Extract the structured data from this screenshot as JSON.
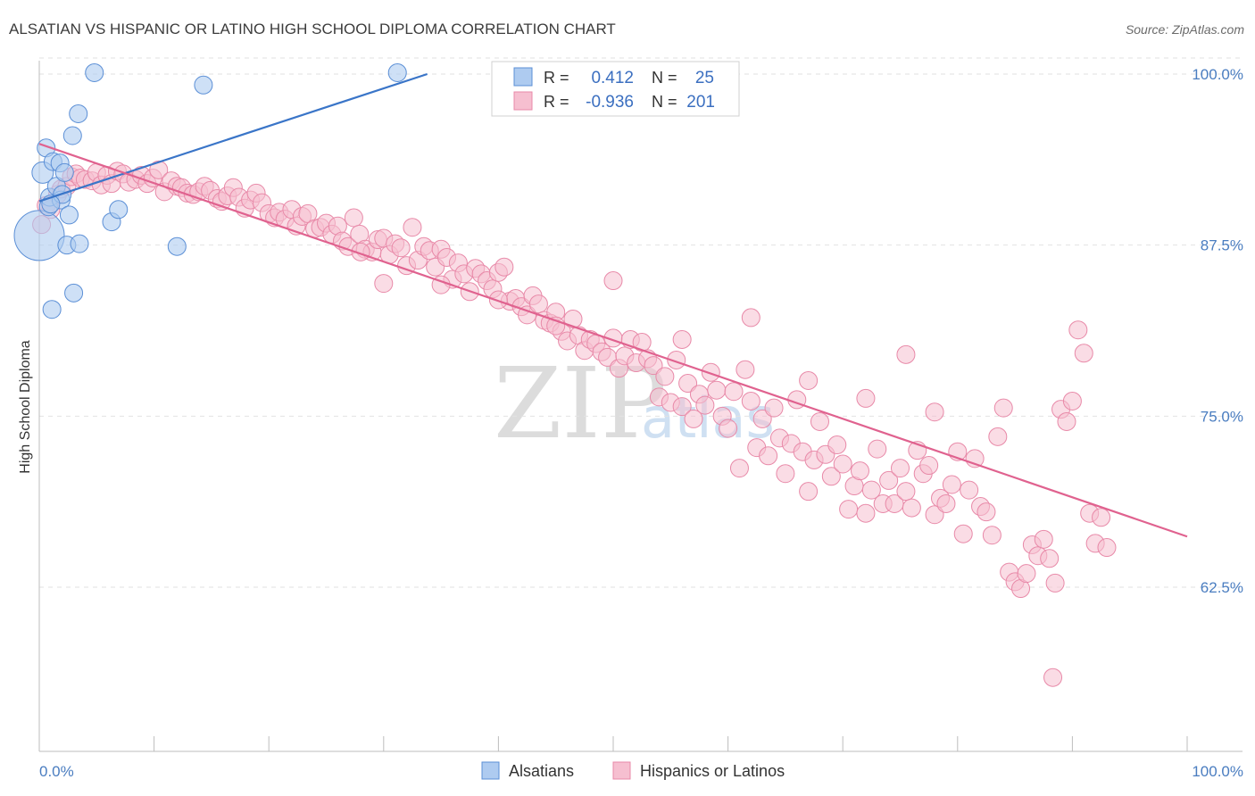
{
  "title": "ALSATIAN VS HISPANIC OR LATINO HIGH SCHOOL DIPLOMA CORRELATION CHART",
  "source": "Source: ZipAtlas.com",
  "watermark": {
    "zip": "ZIP",
    "atlas": "atlas"
  },
  "colors": {
    "blue_fill": "#aecbf0",
    "blue_stroke": "#5b8fd6",
    "blue_line": "#3a75c8",
    "pink_fill": "#f6bfd0",
    "pink_stroke": "#e889a8",
    "pink_line": "#e0628f",
    "grid": "#e2e2e2",
    "axis": "#bdbdbd",
    "tick_text": "#4a7dc0"
  },
  "legend": {
    "r_label": "R =",
    "n_label": "N =",
    "rows": [
      {
        "series": "Alsatians",
        "r": "0.412",
        "n": "25"
      },
      {
        "series": "Hispanics or Latinos",
        "r": "-0.936",
        "n": "201"
      }
    ]
  },
  "chart_data": {
    "type": "scatter",
    "title": "ALSATIAN VS HISPANIC OR LATINO HIGH SCHOOL DIPLOMA CORRELATION CHART",
    "xlabel": "",
    "ylabel": "High School Diploma",
    "xlim": [
      0,
      100
    ],
    "ylim": [
      50.5,
      101.5
    ],
    "x_tick_labels": [
      "0.0%",
      "100.0%"
    ],
    "y_ticks": [
      62.5,
      75.0,
      87.5,
      100.0
    ],
    "y_tick_labels": [
      "62.5%",
      "75.0%",
      "87.5%",
      "100.0%"
    ],
    "grid": true,
    "legend_position": "bottom-center",
    "series": [
      {
        "name": "Alsatians",
        "r": 0.412,
        "n": 25,
        "trend": {
          "x0": 0,
          "y0": 90.7,
          "x1": 33.8,
          "y1": 100.0
        },
        "points": [
          [
            0.0,
            88.2,
            28
          ],
          [
            0.3,
            92.8,
            12
          ],
          [
            0.6,
            94.6,
            10
          ],
          [
            0.8,
            90.3,
            10
          ],
          [
            0.9,
            91.0,
            10
          ],
          [
            1.2,
            93.6,
            10
          ],
          [
            1.5,
            91.8,
            10
          ],
          [
            1.8,
            93.5,
            10
          ],
          [
            1.9,
            90.8,
            10
          ],
          [
            2.0,
            91.2,
            10
          ],
          [
            2.2,
            92.8,
            10
          ],
          [
            2.4,
            87.5,
            10
          ],
          [
            2.6,
            89.7,
            10
          ],
          [
            2.9,
            95.5,
            10
          ],
          [
            3.0,
            84.0,
            10
          ],
          [
            3.4,
            97.1,
            10
          ],
          [
            3.5,
            87.6,
            10
          ],
          [
            1.1,
            82.8,
            10
          ],
          [
            4.8,
            100.1,
            10
          ],
          [
            6.3,
            89.2,
            10
          ],
          [
            6.9,
            90.1,
            10
          ],
          [
            12.0,
            87.4,
            10
          ],
          [
            14.3,
            99.2,
            10
          ],
          [
            31.2,
            100.1,
            10
          ],
          [
            1.0,
            90.5,
            10
          ]
        ]
      },
      {
        "name": "Hispanics or Latinos",
        "r": -0.936,
        "n": 201,
        "trend": {
          "x0": 0,
          "y0": 94.9,
          "x1": 100,
          "y1": 66.2
        },
        "points": [
          [
            0.2,
            89.0
          ],
          [
            0.6,
            90.4
          ],
          [
            1.0,
            90.1
          ],
          [
            1.6,
            91.2
          ],
          [
            1.9,
            91.6
          ],
          [
            2.4,
            91.8
          ],
          [
            2.8,
            92.5
          ],
          [
            3.2,
            92.7
          ],
          [
            3.6,
            92.4
          ],
          [
            4.0,
            92.3
          ],
          [
            4.6,
            92.2
          ],
          [
            5.0,
            92.8
          ],
          [
            5.4,
            91.9
          ],
          [
            5.9,
            92.6
          ],
          [
            6.3,
            92.0
          ],
          [
            6.8,
            92.9
          ],
          [
            7.3,
            92.7
          ],
          [
            7.8,
            92.1
          ],
          [
            8.4,
            92.3
          ],
          [
            8.9,
            92.6
          ],
          [
            9.4,
            92.0
          ],
          [
            9.9,
            92.4
          ],
          [
            10.4,
            93.0
          ],
          [
            10.9,
            91.4
          ],
          [
            11.5,
            92.2
          ],
          [
            12.0,
            91.8
          ],
          [
            12.4,
            91.7
          ],
          [
            12.9,
            91.3
          ],
          [
            13.4,
            91.2
          ],
          [
            13.9,
            91.4
          ],
          [
            14.4,
            91.8
          ],
          [
            14.9,
            91.5
          ],
          [
            15.5,
            90.9
          ],
          [
            15.9,
            90.7
          ],
          [
            16.4,
            91.1
          ],
          [
            16.9,
            91.7
          ],
          [
            17.4,
            91.0
          ],
          [
            17.9,
            90.2
          ],
          [
            18.4,
            90.8
          ],
          [
            18.9,
            91.3
          ],
          [
            19.4,
            90.6
          ],
          [
            20.0,
            89.8
          ],
          [
            20.5,
            89.5
          ],
          [
            20.9,
            89.9
          ],
          [
            21.4,
            89.4
          ],
          [
            22.0,
            90.1
          ],
          [
            22.4,
            88.9
          ],
          [
            22.9,
            89.6
          ],
          [
            23.4,
            89.8
          ],
          [
            24.0,
            88.7
          ],
          [
            24.5,
            88.8
          ],
          [
            25.0,
            89.1
          ],
          [
            25.5,
            88.3
          ],
          [
            26.0,
            88.9
          ],
          [
            26.4,
            87.8
          ],
          [
            26.9,
            87.4
          ],
          [
            27.4,
            89.5
          ],
          [
            27.9,
            88.3
          ],
          [
            28.4,
            87.2
          ],
          [
            29.0,
            87.0
          ],
          [
            29.5,
            87.9
          ],
          [
            30.0,
            88.0
          ],
          [
            30.5,
            86.8
          ],
          [
            31.0,
            87.6
          ],
          [
            31.5,
            87.3
          ],
          [
            32.0,
            86.0
          ],
          [
            32.5,
            88.8
          ],
          [
            33.0,
            86.4
          ],
          [
            33.5,
            87.4
          ],
          [
            34.0,
            87.1
          ],
          [
            34.5,
            85.9
          ],
          [
            35.0,
            87.2
          ],
          [
            35.5,
            86.6
          ],
          [
            36.0,
            85.0
          ],
          [
            36.5,
            86.2
          ],
          [
            37.0,
            85.4
          ],
          [
            37.5,
            84.1
          ],
          [
            38.0,
            85.8
          ],
          [
            38.5,
            85.4
          ],
          [
            39.0,
            84.9
          ],
          [
            39.5,
            84.3
          ],
          [
            40.0,
            85.5
          ],
          [
            40.5,
            85.9
          ],
          [
            41.0,
            83.4
          ],
          [
            41.5,
            83.6
          ],
          [
            42.0,
            83.0
          ],
          [
            42.5,
            82.4
          ],
          [
            43.0,
            83.8
          ],
          [
            43.5,
            83.2
          ],
          [
            44.0,
            82.0
          ],
          [
            44.5,
            81.8
          ],
          [
            45.0,
            82.6
          ],
          [
            45.5,
            81.2
          ],
          [
            46.0,
            80.5
          ],
          [
            46.5,
            82.1
          ],
          [
            47.0,
            80.9
          ],
          [
            47.5,
            79.8
          ],
          [
            48.0,
            80.6
          ],
          [
            48.5,
            80.3
          ],
          [
            49.0,
            79.7
          ],
          [
            49.5,
            79.3
          ],
          [
            50.0,
            80.7
          ],
          [
            50.5,
            78.5
          ],
          [
            51.0,
            79.4
          ],
          [
            51.5,
            80.6
          ],
          [
            52.0,
            78.9
          ],
          [
            52.5,
            80.4
          ],
          [
            53.0,
            79.2
          ],
          [
            53.5,
            78.7
          ],
          [
            54.0,
            76.4
          ],
          [
            54.5,
            77.9
          ],
          [
            55.0,
            76.0
          ],
          [
            55.5,
            79.1
          ],
          [
            56.0,
            75.7
          ],
          [
            56.5,
            77.4
          ],
          [
            57.0,
            74.8
          ],
          [
            57.5,
            76.6
          ],
          [
            58.0,
            75.8
          ],
          [
            58.5,
            78.2
          ],
          [
            59.0,
            76.9
          ],
          [
            59.5,
            75.0
          ],
          [
            60.0,
            74.1
          ],
          [
            60.5,
            76.8
          ],
          [
            61.0,
            71.2
          ],
          [
            61.5,
            78.4
          ],
          [
            62.0,
            76.1
          ],
          [
            62.5,
            72.7
          ],
          [
            63.0,
            74.8
          ],
          [
            63.5,
            72.1
          ],
          [
            64.0,
            75.6
          ],
          [
            64.5,
            73.4
          ],
          [
            65.0,
            70.8
          ],
          [
            65.5,
            73.0
          ],
          [
            66.0,
            76.2
          ],
          [
            66.5,
            72.4
          ],
          [
            67.0,
            69.5
          ],
          [
            67.5,
            71.8
          ],
          [
            68.0,
            74.6
          ],
          [
            68.5,
            72.2
          ],
          [
            69.0,
            70.6
          ],
          [
            69.5,
            72.9
          ],
          [
            70.0,
            71.5
          ],
          [
            70.5,
            68.2
          ],
          [
            71.0,
            69.9
          ],
          [
            71.5,
            71.0
          ],
          [
            72.0,
            67.9
          ],
          [
            72.5,
            69.6
          ],
          [
            73.0,
            72.6
          ],
          [
            73.5,
            68.6
          ],
          [
            74.0,
            70.3
          ],
          [
            74.5,
            68.6
          ],
          [
            75.0,
            71.2
          ],
          [
            75.5,
            69.5
          ],
          [
            76.0,
            68.3
          ],
          [
            76.5,
            72.5
          ],
          [
            77.0,
            70.8
          ],
          [
            77.5,
            71.4
          ],
          [
            78.0,
            67.8
          ],
          [
            78.5,
            69.0
          ],
          [
            79.0,
            68.6
          ],
          [
            79.5,
            70.0
          ],
          [
            80.0,
            72.4
          ],
          [
            80.5,
            66.4
          ],
          [
            81.0,
            69.6
          ],
          [
            81.5,
            71.9
          ],
          [
            82.0,
            68.4
          ],
          [
            82.5,
            68.0
          ],
          [
            83.0,
            66.3
          ],
          [
            83.5,
            73.5
          ],
          [
            84.0,
            75.6
          ],
          [
            84.5,
            63.6
          ],
          [
            85.0,
            62.9
          ],
          [
            85.5,
            62.4
          ],
          [
            86.0,
            63.5
          ],
          [
            86.5,
            65.6
          ],
          [
            87.0,
            64.8
          ],
          [
            87.5,
            66.0
          ],
          [
            88.0,
            64.6
          ],
          [
            88.5,
            62.8
          ],
          [
            89.0,
            75.5
          ],
          [
            89.5,
            74.6
          ],
          [
            90.0,
            76.1
          ],
          [
            90.5,
            81.3
          ],
          [
            91.0,
            79.6
          ],
          [
            91.5,
            67.9
          ],
          [
            92.0,
            65.7
          ],
          [
            92.5,
            67.6
          ],
          [
            93.0,
            65.4
          ],
          [
            75.5,
            79.5
          ],
          [
            78.0,
            75.3
          ],
          [
            72.0,
            76.3
          ],
          [
            67.0,
            77.6
          ],
          [
            62.0,
            82.2
          ],
          [
            56.0,
            80.6
          ],
          [
            50.0,
            84.9
          ],
          [
            45.0,
            81.6
          ],
          [
            40.0,
            83.5
          ],
          [
            35.0,
            84.6
          ],
          [
            30.0,
            84.7
          ],
          [
            28.0,
            87.0
          ],
          [
            88.3,
            55.9
          ]
        ]
      }
    ]
  },
  "bottom_legend": [
    "Alsatians",
    "Hispanics or Latinos"
  ]
}
